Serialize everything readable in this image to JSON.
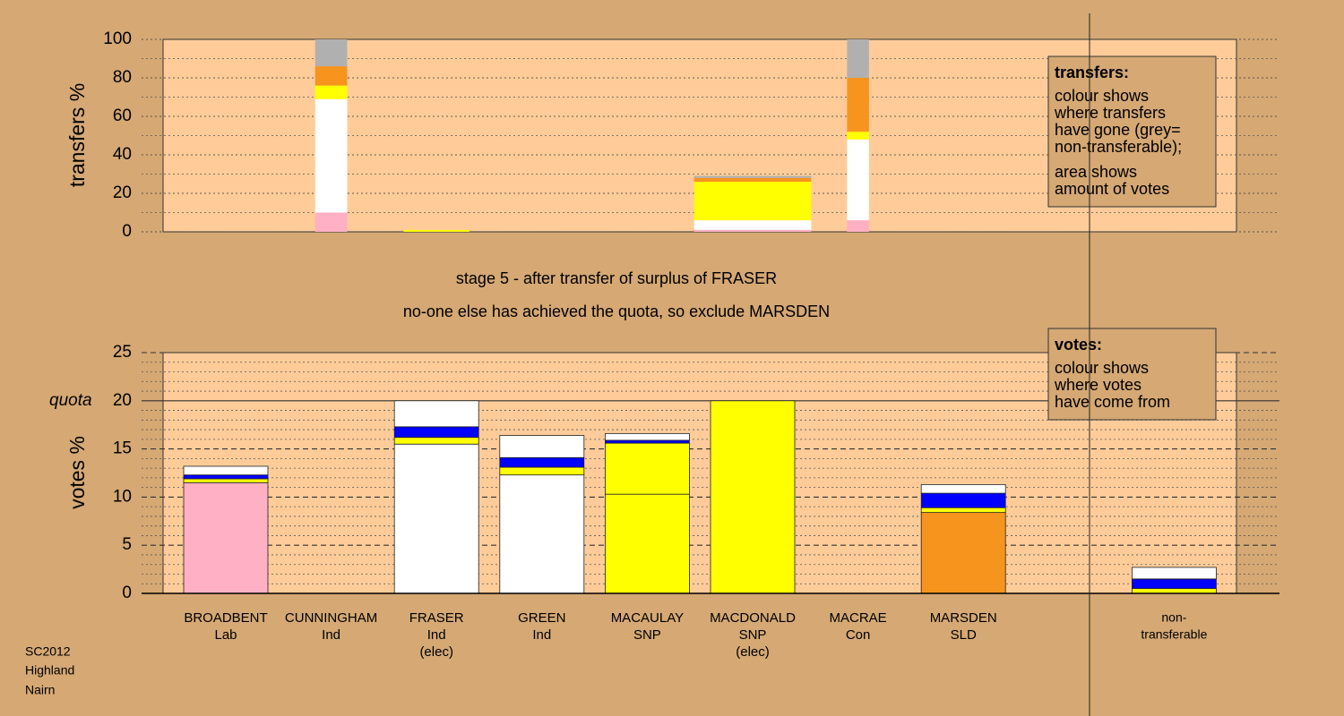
{
  "chart_data": [
    {
      "type": "stacked-bar",
      "ylabel": "transfers %",
      "ylim": [
        0,
        100
      ],
      "yticks": [
        0,
        20,
        40,
        60,
        80,
        100
      ],
      "minor_yticks": [
        10,
        30,
        50,
        70,
        90
      ],
      "bar_widths": [
        null,
        0.38,
        0.78,
        null,
        null,
        1.39,
        0.26,
        null,
        null,
        null
      ],
      "series": [
        {
          "color": "#ffb0c4",
          "values": [
            null,
            10,
            null,
            null,
            null,
            1,
            6,
            null,
            null,
            null
          ]
        },
        {
          "color": "#ffffff",
          "values": [
            null,
            59,
            null,
            null,
            null,
            5,
            42,
            null,
            null,
            null
          ]
        },
        {
          "color": "#ffff00",
          "values": [
            null,
            7,
            1,
            null,
            null,
            20,
            4,
            null,
            null,
            null
          ]
        },
        {
          "color": "#f7941d",
          "values": [
            null,
            10,
            null,
            null,
            null,
            2,
            28,
            null,
            null,
            null
          ]
        },
        {
          "color": "#b0b0b0",
          "values": [
            null,
            14,
            null,
            null,
            null,
            1,
            20,
            null,
            null,
            null
          ]
        }
      ],
      "legend": {
        "title": "transfers:",
        "lines": [
          "colour shows",
          "where transfers",
          "have gone (grey=",
          "non-transferable);",
          "area shows",
          "amount of votes"
        ]
      }
    },
    {
      "type": "stacked-bar",
      "ylabel": "votes %",
      "ylim": [
        0,
        25
      ],
      "yticks": [
        0,
        5,
        10,
        15,
        20,
        25
      ],
      "minor_yticks": [
        1,
        2,
        3,
        4,
        6,
        7,
        8,
        9,
        11,
        12,
        13,
        14,
        16,
        17,
        18,
        19,
        21,
        22,
        23,
        24
      ],
      "quota": {
        "value": 20,
        "label": "quota"
      },
      "categories": [
        [
          "BROADBENT",
          "Lab"
        ],
        [
          "CUNNINGHAM",
          "Ind"
        ],
        [
          "FRASER",
          "Ind",
          "(elec)"
        ],
        [
          "GREEN",
          "Ind"
        ],
        [
          "MACAULAY",
          "SNP"
        ],
        [
          "MACDONALD",
          "SNP",
          "(elec)"
        ],
        [
          "MACRAE",
          "Con"
        ],
        [
          "MARSDEN",
          "SLD"
        ],
        null,
        [
          "non-",
          "transferable"
        ]
      ],
      "series": [
        {
          "colors": [
            "#ffb0c4",
            "#ffffff",
            "#ffffff",
            "#ffffff",
            "#ffff00",
            "#ffff00",
            "#0000ff",
            "#f7941d",
            null,
            null
          ],
          "values": [
            11.5,
            0,
            15.5,
            12.3,
            10.3,
            20,
            0,
            8.4,
            null,
            null
          ]
        },
        {
          "color": "#ffff00",
          "values": [
            0.4,
            null,
            0.7,
            0.8,
            5.3,
            null,
            null,
            0.5,
            null,
            0.5
          ]
        },
        {
          "color": "#0000ff",
          "values": [
            0.4,
            null,
            1.1,
            1.0,
            0.3,
            null,
            null,
            1.5,
            null,
            1.0
          ]
        },
        {
          "color": "#ffffff",
          "values": [
            0.9,
            null,
            2.7,
            2.3,
            0.7,
            null,
            null,
            0.9,
            null,
            1.2
          ]
        }
      ],
      "legend": {
        "title": "votes:",
        "lines": [
          "colour shows",
          "where votes",
          "have come from"
        ]
      }
    }
  ],
  "stage": [
    "stage 5 - after transfer of surplus of FRASER",
    "no-one else has achieved the quota, so exclude MARSDEN"
  ],
  "footer": [
    "SC2012",
    "Highland",
    "Nairn"
  ]
}
